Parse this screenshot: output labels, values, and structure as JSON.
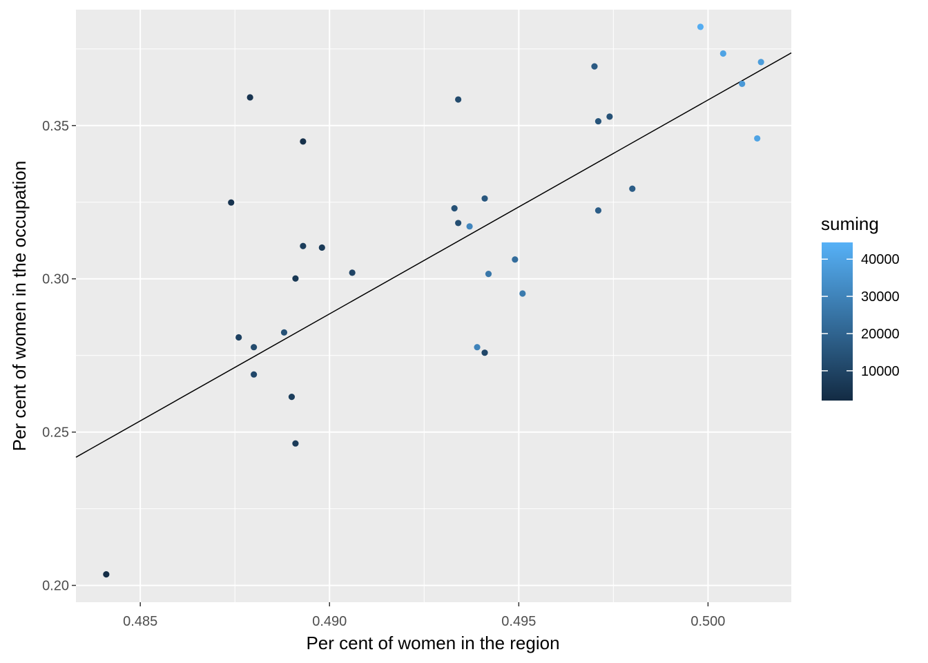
{
  "chart_data": {
    "type": "scatter",
    "title": "",
    "xlabel": "Per cent of women in the region",
    "ylabel": "Per cent of women in the occupation",
    "xlim": [
      0.4833,
      0.5022
    ],
    "ylim": [
      0.1945,
      0.3878
    ],
    "x_ticks": [
      0.485,
      0.49,
      0.495,
      0.5
    ],
    "x_tick_labels": [
      "0.485",
      "0.490",
      "0.495",
      "0.500"
    ],
    "y_ticks": [
      0.2,
      0.25,
      0.3,
      0.35
    ],
    "y_tick_labels": [
      "0.20",
      "0.25",
      "0.30",
      "0.35"
    ],
    "grid": true,
    "background": "#ebebeb",
    "fit_line": {
      "x": [
        0.4833,
        0.5022
      ],
      "y": [
        0.2418,
        0.3737
      ],
      "color": "#000000"
    },
    "color_scale": {
      "name": "suming",
      "min": 2000,
      "max": 44500,
      "low_color": "#132b43",
      "high_color": "#56b1f7",
      "breaks": [
        10000,
        20000,
        30000,
        40000
      ],
      "break_labels": [
        "10000",
        "20000",
        "30000",
        "40000"
      ],
      "position": "right"
    },
    "points": [
      {
        "x": 0.4841,
        "y": 0.2036,
        "suming": 3000
      },
      {
        "x": 0.4874,
        "y": 0.3249,
        "suming": 5000
      },
      {
        "x": 0.4876,
        "y": 0.2809,
        "suming": 9000
      },
      {
        "x": 0.4879,
        "y": 0.3592,
        "suming": 5000
      },
      {
        "x": 0.488,
        "y": 0.2777,
        "suming": 12000
      },
      {
        "x": 0.488,
        "y": 0.2688,
        "suming": 11000
      },
      {
        "x": 0.4888,
        "y": 0.2825,
        "suming": 14000
      },
      {
        "x": 0.489,
        "y": 0.2615,
        "suming": 8000
      },
      {
        "x": 0.4891,
        "y": 0.2463,
        "suming": 7000
      },
      {
        "x": 0.4891,
        "y": 0.3001,
        "suming": 6000
      },
      {
        "x": 0.4893,
        "y": 0.3448,
        "suming": 4000
      },
      {
        "x": 0.4893,
        "y": 0.3107,
        "suming": 8000
      },
      {
        "x": 0.4898,
        "y": 0.3102,
        "suming": 7000
      },
      {
        "x": 0.4906,
        "y": 0.302,
        "suming": 10000
      },
      {
        "x": 0.4933,
        "y": 0.323,
        "suming": 14000
      },
      {
        "x": 0.4934,
        "y": 0.3585,
        "suming": 12000
      },
      {
        "x": 0.4934,
        "y": 0.3182,
        "suming": 13000
      },
      {
        "x": 0.4937,
        "y": 0.3171,
        "suming": 31000
      },
      {
        "x": 0.4939,
        "y": 0.2777,
        "suming": 30000
      },
      {
        "x": 0.4941,
        "y": 0.3262,
        "suming": 16000
      },
      {
        "x": 0.4941,
        "y": 0.2759,
        "suming": 11000
      },
      {
        "x": 0.4942,
        "y": 0.3016,
        "suming": 26000
      },
      {
        "x": 0.4949,
        "y": 0.3063,
        "suming": 23000
      },
      {
        "x": 0.4951,
        "y": 0.2952,
        "suming": 27000
      },
      {
        "x": 0.497,
        "y": 0.3693,
        "suming": 17000
      },
      {
        "x": 0.4971,
        "y": 0.3514,
        "suming": 15000
      },
      {
        "x": 0.4971,
        "y": 0.3223,
        "suming": 18000
      },
      {
        "x": 0.4974,
        "y": 0.3529,
        "suming": 14000
      },
      {
        "x": 0.498,
        "y": 0.3294,
        "suming": 18000
      },
      {
        "x": 0.4998,
        "y": 0.3822,
        "suming": 43000
      },
      {
        "x": 0.5004,
        "y": 0.3735,
        "suming": 40000
      },
      {
        "x": 0.5009,
        "y": 0.3636,
        "suming": 37000
      },
      {
        "x": 0.5013,
        "y": 0.3458,
        "suming": 40000
      },
      {
        "x": 0.5014,
        "y": 0.3707,
        "suming": 38000
      }
    ]
  }
}
